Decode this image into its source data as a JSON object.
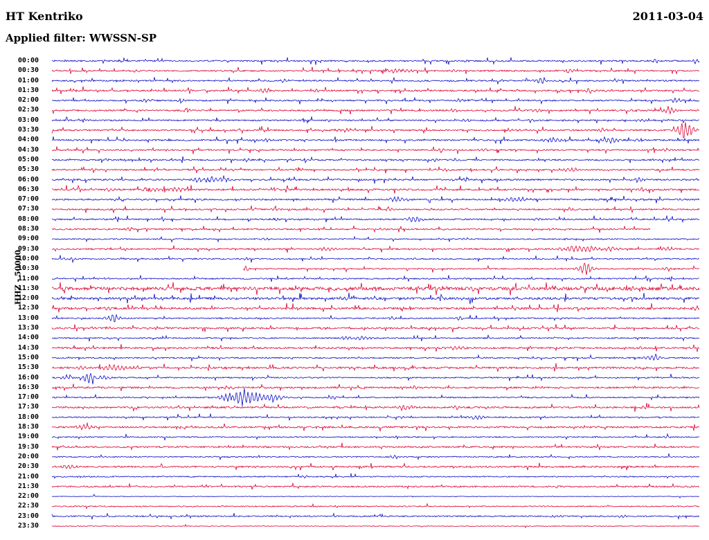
{
  "header": {
    "station": "HT Kentriko",
    "date": "2011-03-04",
    "filter_label": "Applied filter: WWSSN-SP"
  },
  "y_axis_label": "HHZ - 50000",
  "colors": {
    "blue": "#0a0ac8",
    "red": "#dc0032",
    "text": "#000000",
    "background": "#ffffff"
  },
  "chart_data": {
    "type": "line",
    "title": "Helicorder seismogram, station HT Kentriko, 2011-03-04, channel HHZ, gain 50000, filter WWSSN-SP",
    "x_axis": "30-minute trace segments from 00:00 to 23:30, alternating blue/red",
    "ylabel": "HHZ - 50000",
    "rows": [
      {
        "time": "00:00",
        "color": "blue",
        "noise": 1.0,
        "spikes": 0.05,
        "events": [
          [
            0.35,
            2,
            4
          ],
          [
            0.64,
            2,
            4
          ],
          [
            0.93,
            3,
            5
          ],
          [
            0.995,
            5,
            3
          ]
        ]
      },
      {
        "time": "00:30",
        "color": "red",
        "noise": 1.0,
        "spikes": 0.05,
        "events": [
          [
            0.13,
            2,
            4
          ],
          [
            0.53,
            3,
            18
          ],
          [
            0.62,
            2,
            4
          ],
          [
            0.8,
            3,
            5
          ]
        ]
      },
      {
        "time": "01:00",
        "color": "blue",
        "noise": 1.0,
        "spikes": 0.05,
        "events": [
          [
            0.36,
            4,
            4
          ],
          [
            0.755,
            5,
            8
          ],
          [
            0.87,
            3,
            4
          ]
        ]
      },
      {
        "time": "01:30",
        "color": "red",
        "noise": 1.1,
        "spikes": 0.06,
        "events": [
          [
            0.33,
            4,
            6
          ],
          [
            0.41,
            3,
            4
          ],
          [
            0.83,
            4,
            6
          ],
          [
            0.86,
            3,
            4
          ]
        ]
      },
      {
        "time": "02:00",
        "color": "blue",
        "noise": 1.0,
        "spikes": 0.05,
        "events": [
          [
            0.145,
            3,
            4
          ],
          [
            0.2,
            3,
            4
          ],
          [
            0.63,
            3,
            4
          ],
          [
            0.965,
            4,
            5
          ]
        ]
      },
      {
        "time": "02:30",
        "color": "red",
        "noise": 1.1,
        "spikes": 0.06,
        "events": [
          [
            0.21,
            3,
            4
          ],
          [
            0.62,
            3,
            5
          ],
          [
            0.75,
            3,
            4
          ],
          [
            0.955,
            5,
            6
          ]
        ]
      },
      {
        "time": "03:00",
        "color": "blue",
        "noise": 1.0,
        "spikes": 0.05,
        "events": [
          [
            0.64,
            3,
            4
          ],
          [
            0.74,
            3,
            4
          ],
          [
            0.91,
            3,
            4
          ]
        ]
      },
      {
        "time": "03:30",
        "color": "red",
        "noise": 1.1,
        "spikes": 0.06,
        "events": [
          [
            0.455,
            3,
            10
          ],
          [
            0.71,
            3,
            6
          ],
          [
            0.85,
            3,
            5
          ],
          [
            0.978,
            16,
            8
          ]
        ]
      },
      {
        "time": "04:00",
        "color": "blue",
        "noise": 1.1,
        "spikes": 0.06,
        "events": [
          [
            0.33,
            3,
            4
          ],
          [
            0.775,
            4,
            10
          ],
          [
            0.86,
            5,
            10
          ],
          [
            0.91,
            3,
            6
          ]
        ]
      },
      {
        "time": "04:30",
        "color": "red",
        "noise": 1.0,
        "spikes": 0.05,
        "events": [
          [
            0.6,
            3,
            5
          ],
          [
            0.665,
            3,
            4
          ],
          [
            0.945,
            3,
            5
          ]
        ]
      },
      {
        "time": "05:00",
        "color": "blue",
        "noise": 1.0,
        "spikes": 0.05,
        "events": [
          [
            0.085,
            3,
            4
          ],
          [
            0.3,
            3,
            4
          ],
          [
            0.59,
            3,
            5
          ],
          [
            0.625,
            3,
            4
          ]
        ]
      },
      {
        "time": "05:30",
        "color": "red",
        "noise": 1.0,
        "spikes": 0.05,
        "events": [
          [
            0.065,
            3,
            4
          ],
          [
            0.28,
            3,
            4
          ],
          [
            0.38,
            2,
            4
          ],
          [
            0.61,
            3,
            4
          ],
          [
            0.8,
            4,
            8
          ]
        ]
      },
      {
        "time": "06:00",
        "color": "blue",
        "noise": 1.1,
        "spikes": 0.05,
        "events": [
          [
            0.225,
            4,
            6
          ],
          [
            0.245,
            5,
            10
          ],
          [
            0.27,
            4,
            6
          ],
          [
            0.64,
            3,
            4
          ],
          [
            0.905,
            4,
            6
          ]
        ]
      },
      {
        "time": "06:30",
        "color": "red",
        "noise": 1.2,
        "spikes": 0.06,
        "events": [
          [
            0.09,
            3,
            8
          ],
          [
            0.155,
            4,
            10
          ],
          [
            0.195,
            4,
            8
          ],
          [
            0.6,
            3,
            4
          ],
          [
            0.91,
            3,
            6
          ]
        ]
      },
      {
        "time": "07:00",
        "color": "blue",
        "noise": 1.1,
        "spikes": 0.05,
        "events": [
          [
            0.535,
            4,
            10
          ],
          [
            0.715,
            5,
            12
          ],
          [
            0.97,
            3,
            4
          ]
        ]
      },
      {
        "time": "07:30",
        "color": "red",
        "noise": 1.0,
        "spikes": 0.05,
        "events": [
          [
            0.345,
            3,
            4
          ],
          [
            0.52,
            2,
            4
          ],
          [
            0.8,
            3,
            4
          ]
        ]
      },
      {
        "time": "08:00",
        "color": "blue",
        "noise": 1.0,
        "spikes": 0.05,
        "events": [
          [
            0.345,
            3,
            4
          ],
          [
            0.56,
            6,
            7
          ],
          [
            0.75,
            2,
            4
          ]
        ]
      },
      {
        "time": "08:30",
        "color": "red",
        "noise": 1.0,
        "spikes": 0.05,
        "events": [
          [
            0.12,
            3,
            4
          ],
          [
            0.51,
            2,
            4
          ],
          [
            0.77,
            3,
            4
          ]
        ],
        "gap": [
          0.925,
          1.0
        ]
      },
      {
        "time": "09:00",
        "color": "blue",
        "noise": 0.8,
        "spikes": 0.03,
        "events": [
          [
            0.33,
            2,
            4
          ],
          [
            0.64,
            2,
            4
          ]
        ]
      },
      {
        "time": "09:30",
        "color": "red",
        "noise": 1.0,
        "spikes": 0.05,
        "events": [
          [
            0.425,
            3,
            8
          ],
          [
            0.82,
            5,
            22
          ],
          [
            0.865,
            4,
            8
          ],
          [
            0.95,
            4,
            6
          ]
        ]
      },
      {
        "time": "10:00",
        "color": "blue",
        "noise": 0.9,
        "spikes": 0.04,
        "events": [
          [
            0.03,
            2,
            10
          ],
          [
            0.3,
            2,
            4
          ],
          [
            0.56,
            2,
            4
          ]
        ]
      },
      {
        "time": "10:30",
        "color": "red",
        "noise": 0.9,
        "spikes": 0.04,
        "events": [
          [
            0.3,
            4,
            3
          ],
          [
            0.823,
            11,
            7
          ],
          [
            0.95,
            3,
            4
          ]
        ],
        "gap": [
          0.0,
          0.295
        ]
      },
      {
        "time": "11:00",
        "color": "blue",
        "noise": 0.9,
        "spikes": 0.04,
        "events": [
          [
            0.6,
            2,
            4
          ],
          [
            0.645,
            3,
            4
          ],
          [
            0.95,
            2,
            4
          ]
        ]
      },
      {
        "time": "11:30",
        "color": "red",
        "noise": 2.2,
        "spikes": 0.08,
        "events": [
          [
            0.6,
            4,
            6
          ],
          [
            0.65,
            4,
            5
          ],
          [
            0.9,
            3,
            8
          ]
        ]
      },
      {
        "time": "12:00",
        "color": "blue",
        "noise": 1.6,
        "spikes": 0.06,
        "events": [
          [
            0.455,
            3,
            10
          ],
          [
            0.6,
            3,
            5
          ]
        ]
      },
      {
        "time": "12:30",
        "color": "red",
        "noise": 1.4,
        "spikes": 0.05,
        "events": [
          [
            0.085,
            3,
            6
          ],
          [
            0.995,
            4,
            4
          ]
        ]
      },
      {
        "time": "13:00",
        "color": "blue",
        "noise": 0.9,
        "spikes": 0.03,
        "events": [
          [
            0.093,
            8,
            7
          ],
          [
            0.525,
            3,
            4
          ],
          [
            0.63,
            3,
            4
          ]
        ]
      },
      {
        "time": "13:30",
        "color": "red",
        "noise": 1.2,
        "spikes": 0.04,
        "events": [
          [
            0.09,
            2,
            6
          ],
          [
            0.42,
            2,
            4
          ]
        ]
      },
      {
        "time": "14:00",
        "color": "blue",
        "noise": 0.9,
        "spikes": 0.03,
        "events": [
          [
            0.455,
            3,
            5
          ],
          [
            0.48,
            4,
            10
          ]
        ]
      },
      {
        "time": "14:30",
        "color": "red",
        "noise": 1.2,
        "spikes": 0.04,
        "events": [
          [
            0.625,
            3,
            8
          ],
          [
            0.905,
            2,
            4
          ]
        ]
      },
      {
        "time": "15:00",
        "color": "blue",
        "noise": 0.9,
        "spikes": 0.03,
        "events": [
          [
            0.93,
            6,
            7
          ]
        ]
      },
      {
        "time": "15:30",
        "color": "red",
        "noise": 1.3,
        "spikes": 0.05,
        "events": [
          [
            0.043,
            3,
            6
          ],
          [
            0.1,
            4,
            16
          ],
          [
            0.9,
            2,
            4
          ]
        ]
      },
      {
        "time": "16:00",
        "color": "blue",
        "noise": 0.9,
        "spikes": 0.03,
        "events": [
          [
            0.022,
            4,
            6
          ],
          [
            0.059,
            13,
            6
          ],
          [
            0.08,
            4,
            8
          ]
        ]
      },
      {
        "time": "16:30",
        "color": "red",
        "noise": 1.2,
        "spikes": 0.04,
        "events": [
          [
            0.27,
            2,
            4
          ],
          [
            0.56,
            2,
            4
          ]
        ]
      },
      {
        "time": "17:00",
        "color": "blue",
        "noise": 0.9,
        "spikes": 0.03,
        "events": [
          [
            0.27,
            9,
            8
          ],
          [
            0.298,
            15,
            14
          ],
          [
            0.34,
            5,
            14
          ],
          [
            0.435,
            3,
            4
          ]
        ]
      },
      {
        "time": "17:30",
        "color": "red",
        "noise": 1.2,
        "spikes": 0.04,
        "events": [
          [
            0.545,
            4,
            10
          ],
          [
            0.625,
            3,
            6
          ],
          [
            0.915,
            2,
            4
          ]
        ]
      },
      {
        "time": "18:00",
        "color": "blue",
        "noise": 0.9,
        "spikes": 0.03,
        "events": [
          [
            0.54,
            2,
            4
          ],
          [
            0.657,
            4,
            8
          ]
        ]
      },
      {
        "time": "18:30",
        "color": "red",
        "noise": 1.2,
        "spikes": 0.04,
        "events": [
          [
            0.053,
            4,
            9
          ]
        ]
      },
      {
        "time": "19:00",
        "color": "blue",
        "noise": 0.8,
        "spikes": 0.02,
        "events": [
          [
            0.95,
            2,
            4
          ]
        ]
      },
      {
        "time": "19:30",
        "color": "red",
        "noise": 1.1,
        "spikes": 0.03,
        "events": []
      },
      {
        "time": "20:00",
        "color": "blue",
        "noise": 0.8,
        "spikes": 0.02,
        "events": [
          [
            0.53,
            3,
            5
          ]
        ]
      },
      {
        "time": "20:30",
        "color": "red",
        "noise": 1.1,
        "spikes": 0.03,
        "events": [
          [
            0.027,
            3,
            8
          ]
        ]
      },
      {
        "time": "21:00",
        "color": "blue",
        "noise": 0.8,
        "spikes": 0.02,
        "events": [
          [
            0.39,
            3,
            3
          ]
        ]
      },
      {
        "time": "21:30",
        "color": "red",
        "noise": 1.0,
        "spikes": 0.03,
        "events": [
          [
            0.78,
            2,
            4
          ]
        ]
      },
      {
        "time": "22:00",
        "color": "blue",
        "noise": 0.4,
        "spikes": 0.005,
        "events": []
      },
      {
        "time": "22:30",
        "color": "red",
        "noise": 0.8,
        "spikes": 0.01,
        "events": []
      },
      {
        "time": "23:00",
        "color": "blue",
        "noise": 0.9,
        "spikes": 0.02,
        "events": [
          [
            0.78,
            2,
            6
          ],
          [
            0.88,
            2,
            6
          ]
        ]
      },
      {
        "time": "23:30",
        "color": "red",
        "noise": 0.5,
        "spikes": 0.005,
        "events": []
      }
    ]
  }
}
